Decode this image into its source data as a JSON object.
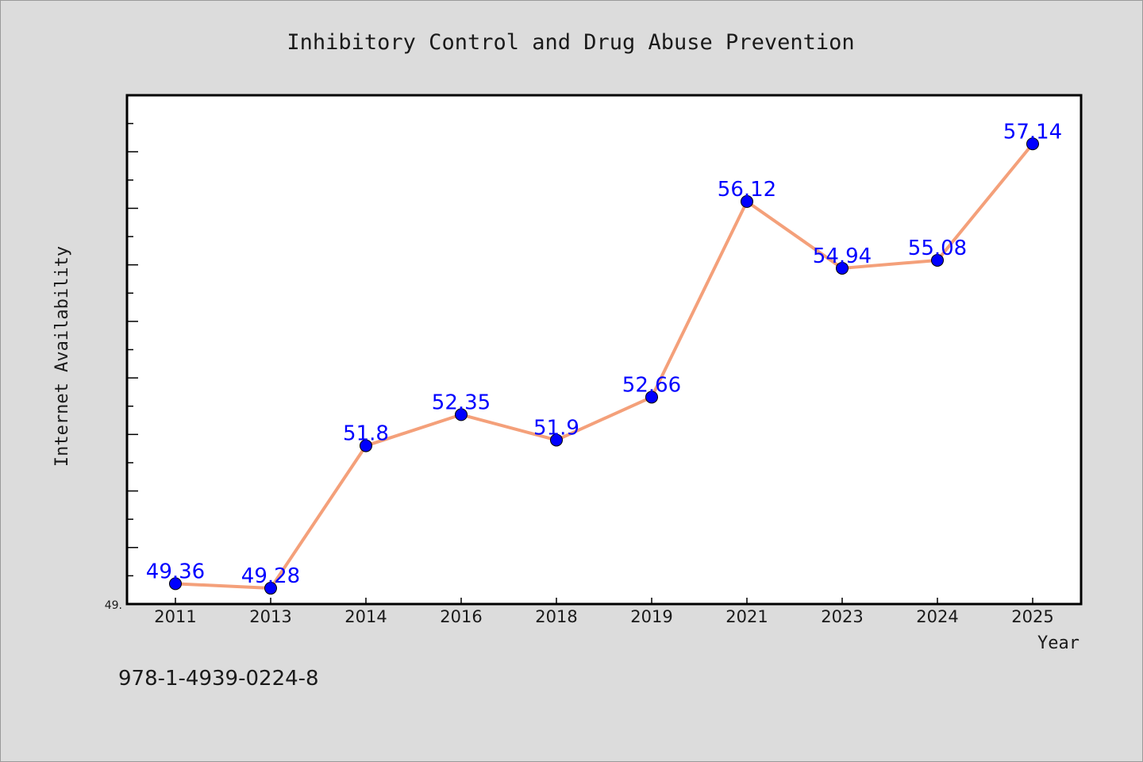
{
  "chart_data": {
    "type": "line",
    "title": "Inhibitory Control and Drug Abuse Prevention",
    "xlabel": "Year",
    "ylabel": "Internet Availability",
    "categories": [
      "2011",
      "2013",
      "2014",
      "2016",
      "2018",
      "2019",
      "2021",
      "2023",
      "2024",
      "2025"
    ],
    "series": [
      {
        "values": [
          49.36,
          49.28,
          51.8,
          52.35,
          51.9,
          52.66,
          56.12,
          54.94,
          55.08,
          57.14
        ]
      }
    ],
    "data_labels": [
      "49.36",
      "49.28",
      "51.8",
      "52.35",
      "51.9",
      "52.66",
      "56.12",
      "54.94",
      "55.08",
      "57.14"
    ],
    "y_tick_label": "49.",
    "ylim": [
      49.0,
      58.0
    ],
    "grid": false,
    "colors": {
      "line": "#f4a07a",
      "marker": "#0000ff",
      "data_label": "#0000ff",
      "background": "#dcdcdc",
      "plot_background": "#ffffff"
    }
  },
  "footer": {
    "isbn": "978-1-4939-0224-8"
  }
}
